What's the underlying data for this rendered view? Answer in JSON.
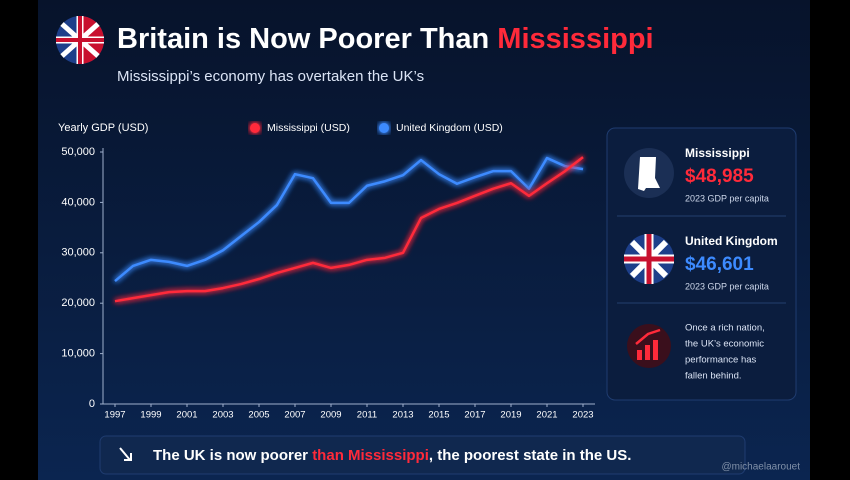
{
  "header": {
    "title": "Britain is Now Poorer Than ",
    "title_highlight": "Mississippi",
    "subtitle": "Mississippi’s economy has overtaken the UK’s"
  },
  "chart_data": {
    "type": "line",
    "y_label": "Yearly GDP (USD)",
    "x": [
      1997,
      1998,
      1999,
      2000,
      2001,
      2002,
      2003,
      2004,
      2005,
      2006,
      2007,
      2008,
      2009,
      2010,
      2011,
      2012,
      2013,
      2014,
      2015,
      2016,
      2017,
      2018,
      2019,
      2020,
      2021,
      2022,
      2023
    ],
    "series": [
      {
        "name": "Mississippi (USD)",
        "color": "#ff2a3a",
        "values": [
          20400,
          21000,
          21600,
          22200,
          22400,
          22400,
          23000,
          23800,
          24800,
          26000,
          27000,
          28000,
          27000,
          27600,
          28600,
          29000,
          30000,
          36900,
          38700,
          39900,
          41300,
          42700,
          43800,
          41300,
          43800,
          46200,
          48985
        ]
      },
      {
        "name": "United Kingdom (USD)",
        "color": "#3d8bff",
        "values": [
          24400,
          27400,
          28600,
          28200,
          27400,
          28600,
          30500,
          33300,
          36100,
          39500,
          45600,
          44800,
          39900,
          39900,
          43300,
          44200,
          45400,
          48400,
          45600,
          43700,
          45000,
          46200,
          46200,
          42700,
          48800,
          47200,
          46601
        ]
      }
    ],
    "xlim": [
      1997,
      2023
    ],
    "xticks": [
      1997,
      1999,
      2001,
      2003,
      2005,
      2007,
      2009,
      2011,
      2013,
      2015,
      2017,
      2019,
      2021,
      2023
    ],
    "ylim": [
      0,
      50000
    ],
    "yticks": [
      0,
      {
        "value": 10000,
        "label": "10,000"
      },
      {
        "value": 20000,
        "label": "20,000"
      },
      {
        "value": 30000,
        "label": "30,000"
      },
      {
        "value": 40000,
        "label": "40,000"
      },
      {
        "value": 50000,
        "label": "50,000"
      }
    ],
    "grid": false,
    "legend": "top"
  },
  "cards": [
    {
      "name": "Mississippi",
      "value": "$48,985",
      "note": "2023 GDP per capita"
    },
    {
      "name": "United Kingdom",
      "value": "$46,601",
      "note": "2023 GDP per capita"
    }
  ],
  "note_lines": [
    "Once a rich nation,",
    "the UK’s economic",
    "performance has",
    "fallen behind."
  ],
  "banner": {
    "start": "The UK is now poorer ",
    "highlight": "than Mississippi",
    "end": ", the poorest state in the US."
  },
  "watermark": "@michaelaarouet"
}
